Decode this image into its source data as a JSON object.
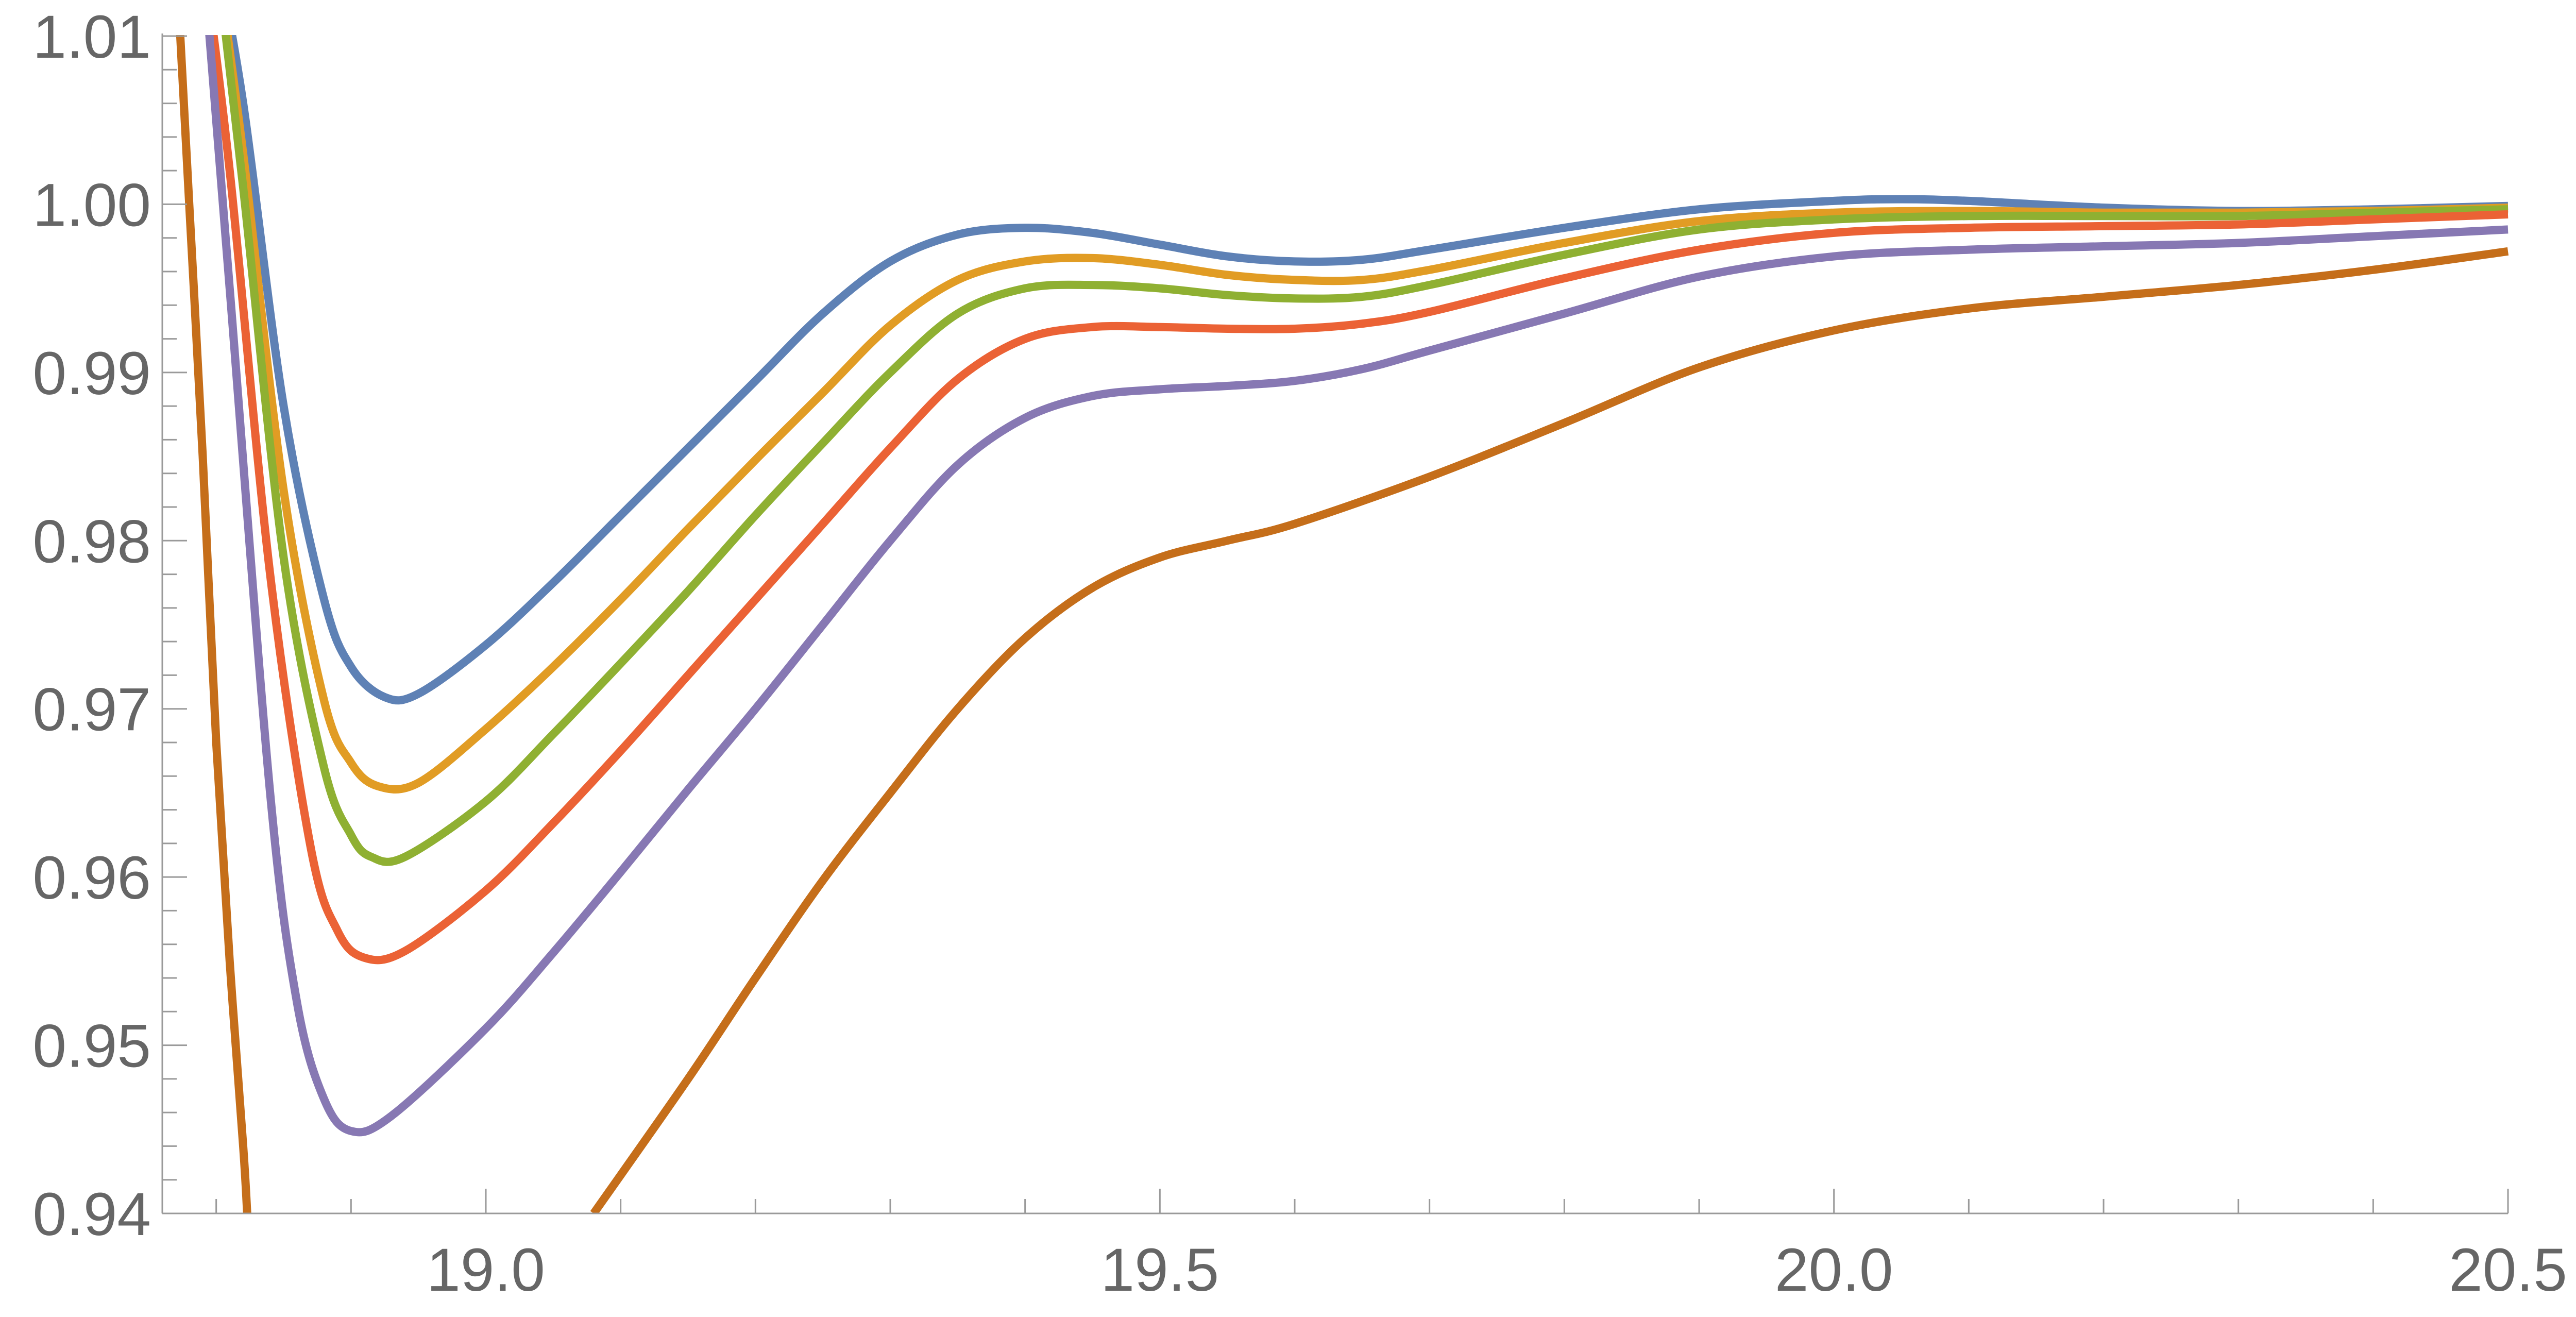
{
  "chart_data": {
    "type": "line",
    "title": "",
    "xlabel": "",
    "ylabel": "",
    "xlim": [
      18.76,
      20.5
    ],
    "ylim": [
      0.94,
      1.01
    ],
    "x_ticks": [
      19.0,
      19.5,
      20.0,
      20.5
    ],
    "x_tick_labels": [
      "19.0",
      "19.5",
      "20.0",
      "20.5"
    ],
    "y_ticks": [
      0.94,
      0.95,
      0.96,
      0.97,
      0.98,
      0.99,
      1.0,
      1.01
    ],
    "y_tick_labels": [
      "0.94",
      "0.95",
      "0.96",
      "0.97",
      "0.98",
      "0.99",
      "1.00",
      "1.01"
    ],
    "grid": false,
    "legend": "none",
    "series": [
      {
        "color": "#5E81B5",
        "points": [
          [
            18.8,
            1.015
          ],
          [
            18.82,
            1.006
          ],
          [
            18.85,
            0.988
          ],
          [
            18.88,
            0.9765
          ],
          [
            18.9,
            0.9725
          ],
          [
            18.925,
            0.9707
          ],
          [
            18.95,
            0.9709
          ],
          [
            19.0,
            0.9738
          ],
          [
            19.05,
            0.9775
          ],
          [
            19.1,
            0.9815
          ],
          [
            19.15,
            0.9855
          ],
          [
            19.2,
            0.9895
          ],
          [
            19.25,
            0.9935
          ],
          [
            19.3,
            0.9966
          ],
          [
            19.35,
            0.9982
          ],
          [
            19.4,
            0.9986
          ],
          [
            19.45,
            0.9983
          ],
          [
            19.5,
            0.9976
          ],
          [
            19.55,
            0.9969
          ],
          [
            19.6,
            0.9966
          ],
          [
            19.65,
            0.9967
          ],
          [
            19.7,
            0.9973
          ],
          [
            19.8,
            0.9986
          ],
          [
            19.9,
            0.9997
          ],
          [
            20.0,
            1.0002
          ],
          [
            20.05,
            1.0003
          ],
          [
            20.1,
            1.0002
          ],
          [
            20.2,
            0.9998
          ],
          [
            20.3,
            0.9996
          ],
          [
            20.4,
            0.9997
          ],
          [
            20.5,
            0.9999
          ]
        ]
      },
      {
        "color": "#E19C24",
        "points": [
          [
            18.8,
            1.015
          ],
          [
            18.82,
            1.003
          ],
          [
            18.85,
            0.983
          ],
          [
            18.88,
            0.9705
          ],
          [
            18.9,
            0.9668
          ],
          [
            18.92,
            0.9654
          ],
          [
            18.95,
            0.9656
          ],
          [
            19.0,
            0.9688
          ],
          [
            19.05,
            0.9725
          ],
          [
            19.1,
            0.9765
          ],
          [
            19.15,
            0.9807
          ],
          [
            19.2,
            0.9848
          ],
          [
            19.25,
            0.9888
          ],
          [
            19.3,
            0.9928
          ],
          [
            19.35,
            0.9955
          ],
          [
            19.4,
            0.9966
          ],
          [
            19.45,
            0.9968
          ],
          [
            19.5,
            0.9964
          ],
          [
            19.55,
            0.9958
          ],
          [
            19.6,
            0.9955
          ],
          [
            19.65,
            0.9955
          ],
          [
            19.7,
            0.9961
          ],
          [
            19.8,
            0.9977
          ],
          [
            19.9,
            0.999
          ],
          [
            20.0,
            0.9995
          ],
          [
            20.1,
            0.9996
          ],
          [
            20.2,
            0.9995
          ],
          [
            20.3,
            0.9995
          ],
          [
            20.4,
            0.9996
          ],
          [
            20.5,
            0.9998
          ]
        ]
      },
      {
        "color": "#8FB032",
        "points": [
          [
            18.8,
            1.015
          ],
          [
            18.82,
            1.001
          ],
          [
            18.85,
            0.979
          ],
          [
            18.88,
            0.9665
          ],
          [
            18.9,
            0.9625
          ],
          [
            18.915,
            0.9612
          ],
          [
            18.94,
            0.9612
          ],
          [
            19.0,
            0.9645
          ],
          [
            19.05,
            0.9685
          ],
          [
            19.1,
            0.9727
          ],
          [
            19.15,
            0.977
          ],
          [
            19.2,
            0.9815
          ],
          [
            19.25,
            0.9858
          ],
          [
            19.3,
            0.99
          ],
          [
            19.35,
            0.9935
          ],
          [
            19.4,
            0.995
          ],
          [
            19.45,
            0.9952
          ],
          [
            19.5,
            0.995
          ],
          [
            19.55,
            0.9946
          ],
          [
            19.6,
            0.9944
          ],
          [
            19.65,
            0.9945
          ],
          [
            19.7,
            0.9952
          ],
          [
            19.8,
            0.997
          ],
          [
            19.9,
            0.9985
          ],
          [
            20.0,
            0.9991
          ],
          [
            20.1,
            0.9993
          ],
          [
            20.2,
            0.9993
          ],
          [
            20.3,
            0.9993
          ],
          [
            20.4,
            0.9995
          ],
          [
            20.5,
            0.9997
          ]
        ]
      },
      {
        "color": "#EB6235",
        "points": [
          [
            18.79,
            1.015
          ],
          [
            18.81,
            1.002
          ],
          [
            18.84,
            0.978
          ],
          [
            18.87,
            0.9618
          ],
          [
            18.89,
            0.9568
          ],
          [
            18.91,
            0.9552
          ],
          [
            18.94,
            0.9556
          ],
          [
            19.0,
            0.9592
          ],
          [
            19.05,
            0.9632
          ],
          [
            19.1,
            0.9675
          ],
          [
            19.15,
            0.972
          ],
          [
            19.2,
            0.9765
          ],
          [
            19.25,
            0.981
          ],
          [
            19.3,
            0.9855
          ],
          [
            19.35,
            0.9896
          ],
          [
            19.4,
            0.992
          ],
          [
            19.45,
            0.9927
          ],
          [
            19.5,
            0.9927
          ],
          [
            19.55,
            0.9926
          ],
          [
            19.6,
            0.9926
          ],
          [
            19.65,
            0.9929
          ],
          [
            19.7,
            0.9936
          ],
          [
            19.8,
            0.9956
          ],
          [
            19.9,
            0.9973
          ],
          [
            20.0,
            0.9983
          ],
          [
            20.1,
            0.9986
          ],
          [
            20.2,
            0.9987
          ],
          [
            20.3,
            0.9988
          ],
          [
            20.4,
            0.9991
          ],
          [
            20.5,
            0.9994
          ]
        ]
      },
      {
        "color": "#8778B3",
        "points": [
          [
            18.79,
            1.015
          ],
          [
            18.81,
            0.995
          ],
          [
            18.84,
            0.965
          ],
          [
            18.86,
            0.9525
          ],
          [
            18.88,
            0.9468
          ],
          [
            18.9,
            0.9449
          ],
          [
            18.93,
            0.9458
          ],
          [
            19.0,
            0.951
          ],
          [
            19.05,
            0.9555
          ],
          [
            19.1,
            0.9603
          ],
          [
            19.15,
            0.9652
          ],
          [
            19.2,
            0.97
          ],
          [
            19.25,
            0.975
          ],
          [
            19.3,
            0.98
          ],
          [
            19.35,
            0.9845
          ],
          [
            19.4,
            0.9873
          ],
          [
            19.45,
            0.9886
          ],
          [
            19.5,
            0.989
          ],
          [
            19.55,
            0.9892
          ],
          [
            19.6,
            0.9895
          ],
          [
            19.65,
            0.9902
          ],
          [
            19.7,
            0.9913
          ],
          [
            19.8,
            0.9935
          ],
          [
            19.9,
            0.9957
          ],
          [
            20.0,
            0.9969
          ],
          [
            20.1,
            0.9973
          ],
          [
            20.2,
            0.9975
          ],
          [
            20.3,
            0.9977
          ],
          [
            20.4,
            0.9981
          ],
          [
            20.5,
            0.9985
          ]
        ]
      },
      {
        "color": "#C56E1A",
        "points": [
          [
            18.77,
            1.015
          ],
          [
            18.78,
            1.0
          ],
          [
            18.79,
            0.985
          ],
          [
            18.8,
            0.968
          ],
          [
            18.81,
            0.955
          ],
          [
            18.82,
            0.944
          ],
          [
            18.823,
            0.94
          ]
        ]
      },
      {
        "color": "#C56E1A",
        "points": [
          [
            19.08,
            0.94
          ],
          [
            19.15,
            0.948
          ],
          [
            19.2,
            0.954
          ],
          [
            19.25,
            0.9598
          ],
          [
            19.3,
            0.965
          ],
          [
            19.35,
            0.97
          ],
          [
            19.4,
            0.9742
          ],
          [
            19.45,
            0.9772
          ],
          [
            19.5,
            0.979
          ],
          [
            19.55,
            0.98
          ],
          [
            19.6,
            0.981
          ],
          [
            19.7,
            0.9838
          ],
          [
            19.8,
            0.987
          ],
          [
            19.9,
            0.9903
          ],
          [
            20.0,
            0.9925
          ],
          [
            20.1,
            0.9938
          ],
          [
            20.2,
            0.9945
          ],
          [
            20.3,
            0.9952
          ],
          [
            20.4,
            0.9961
          ],
          [
            20.5,
            0.9972
          ]
        ]
      }
    ]
  }
}
